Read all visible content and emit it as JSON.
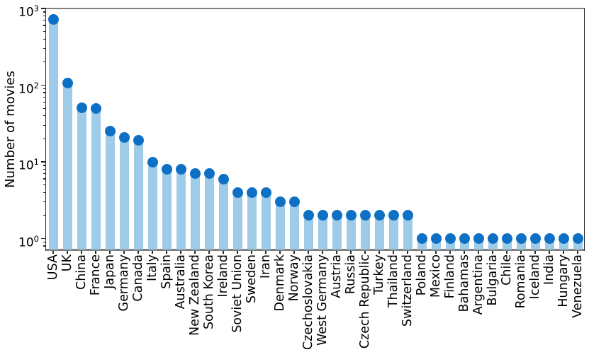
{
  "chart_data": {
    "type": "bar",
    "subtype": "lollipop",
    "title": "",
    "xlabel": "",
    "ylabel": "Number of movies",
    "y_scale": "log",
    "ylim": [
      0.72,
      1000
    ],
    "y_tick_exponents": [
      3,
      2,
      1,
      0
    ],
    "grid": false,
    "legend": null,
    "categories": [
      "USA",
      "UK",
      "China",
      "France",
      "Japan",
      "Germany",
      "Canada",
      "Italy",
      "Spain",
      "Australia",
      "New Zealand",
      "South Korea",
      "Ireland",
      "Soviet Union",
      "Sweden",
      "Iran",
      "Denmark",
      "Norway",
      "Czechoslovakia",
      "West Germany",
      "Austria",
      "Russia",
      "Czech Republic",
      "Turkey",
      "Thailand",
      "Switzerland",
      "Poland",
      "Mexico",
      "Finland",
      "Bahamas",
      "Argentina",
      "Bulgaria",
      "Chile",
      "Romania",
      "Iceland",
      "India",
      "Hungary",
      "Venezuela"
    ],
    "values": [
      720,
      107,
      51,
      50,
      25,
      21,
      19,
      10,
      8,
      8,
      7,
      7,
      6,
      4,
      4,
      4,
      3,
      3,
      2,
      2,
      2,
      2,
      2,
      2,
      2,
      2,
      1,
      1,
      1,
      1,
      1,
      1,
      1,
      1,
      1,
      1,
      1,
      1
    ],
    "colors": {
      "bar": "#9ecbe8",
      "dot": "#0d70c4",
      "spine_horizontal": "#7f7f7f",
      "spine_vertical": "#262626",
      "tick": "#262626",
      "text": "#000000",
      "background": "#ffffff"
    }
  }
}
